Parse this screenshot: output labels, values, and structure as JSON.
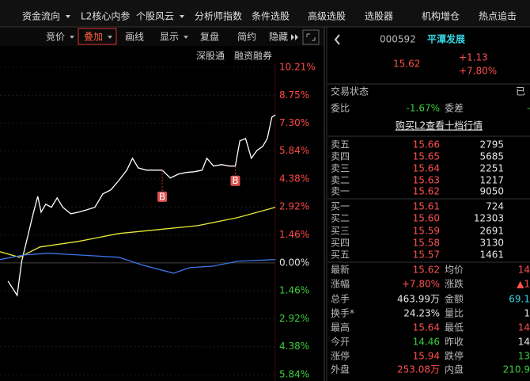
{
  "menu": [
    "资金流向",
    "L2核心内参",
    "个股风云",
    "分析师指数",
    "条件选股",
    "高级选股",
    "选股器",
    "机构增仓",
    "热点追击"
  ],
  "toolbar": [
    "竞价",
    "叠加",
    "画线",
    "显示",
    "复盘",
    "简约",
    "隐藏"
  ],
  "links": [
    "深股通",
    "融资融券"
  ],
  "chart_data": {
    "type": "line",
    "xlim": [
      0,
      241
    ],
    "ylim": [
      -5.84,
      10.21
    ],
    "yticks": [
      {
        "value": 10.21,
        "label": "10.21%"
      },
      {
        "value": 8.75,
        "label": "8.75%"
      },
      {
        "value": 7.3,
        "label": "7.30%"
      },
      {
        "value": 5.84,
        "label": "5.84%"
      },
      {
        "value": 4.38,
        "label": "4.38%"
      },
      {
        "value": 2.92,
        "label": "2.92%"
      },
      {
        "value": 1.46,
        "label": "1.46%"
      },
      {
        "value": 0,
        "label": "0.00%"
      },
      {
        "value": -1.46,
        "label": "1.46%"
      },
      {
        "value": -2.92,
        "label": "2.92%"
      },
      {
        "value": -4.38,
        "label": "4.38%"
      },
      {
        "value": -5.84,
        "label": "5.84%"
      }
    ],
    "series": [
      {
        "color": "#ffffff",
        "x": [
          7,
          15,
          19,
          24,
          29,
          33,
          36,
          40,
          45,
          50,
          55,
          62,
          69,
          76,
          83,
          90,
          97,
          104,
          111,
          116,
          121,
          128,
          135,
          142,
          149,
          156,
          163,
          170,
          177,
          181,
          187,
          194,
          201,
          206,
          210,
          215,
          220,
          225,
          230,
          234,
          238,
          241
        ],
        "values": [
          -0.95,
          -1.7,
          0.08,
          1.32,
          2.56,
          3.47,
          2.65,
          3.06,
          2.9,
          3.39,
          2.9,
          2.56,
          2.65,
          2.77,
          2.9,
          3.6,
          3.81,
          4.3,
          4.84,
          5.46,
          4.96,
          4.84,
          4.84,
          4.84,
          4.43,
          4.63,
          4.72,
          4.76,
          4.84,
          5.46,
          5.05,
          5.13,
          5.05,
          5.05,
          6.37,
          6.49,
          5.46,
          5.87,
          6.08,
          6.49,
          7.61,
          7.73
        ]
      },
      {
        "color": "#e8e83a",
        "x": [
          0,
          17,
          35,
          69,
          104,
          139,
          173,
          208,
          241
        ],
        "values": [
          0.58,
          0.29,
          0.83,
          1.12,
          1.53,
          1.74,
          1.94,
          2.36,
          2.9
        ]
      },
      {
        "color": "#3a78e8",
        "x": [
          0,
          21,
          42,
          69,
          104,
          125,
          152,
          166,
          187,
          208,
          241
        ],
        "values": [
          0.17,
          0.41,
          0.5,
          0.41,
          0.29,
          -0.12,
          -0.54,
          -0.25,
          -0.17,
          0.08,
          0.17
        ]
      }
    ],
    "markers": [
      {
        "label": "B",
        "x": 142,
        "value": 4.84
      },
      {
        "label": "B",
        "x": 206,
        "value": 5.05
      }
    ]
  },
  "quote": {
    "code": "000592",
    "name": "平潭发展",
    "price": "15.62",
    "change": "+1.13",
    "pct": "+7.80%"
  },
  "status": [
    "交易状态",
    "已"
  ],
  "weibi": [
    "委比",
    "-1.67%",
    "委差",
    "-"
  ],
  "l2_link": "购买L2查看十档行情",
  "sell": [
    [
      "卖五",
      "15.66",
      "2795"
    ],
    [
      "卖四",
      "15.65",
      "5685"
    ],
    [
      "卖三",
      "15.64",
      "2251"
    ],
    [
      "卖二",
      "15.63",
      "1217"
    ],
    [
      "卖一",
      "15.62",
      "9050"
    ]
  ],
  "buy": [
    [
      "买一",
      "15.61",
      "724"
    ],
    [
      "买二",
      "15.60",
      "12303"
    ],
    [
      "买三",
      "15.59",
      "2691"
    ],
    [
      "买四",
      "15.58",
      "3130"
    ],
    [
      "买五",
      "15.57",
      "1461"
    ]
  ],
  "stats": [
    [
      "最新",
      "15.62",
      "均价",
      "14"
    ],
    [
      "涨幅",
      "+7.80%",
      "涨跌",
      "▲1"
    ],
    [
      "总手",
      "463.99万",
      "金额",
      "69.1"
    ],
    [
      "换手*",
      "24.23%",
      "量比",
      "1"
    ],
    [
      "最高",
      "15.64",
      "最低",
      "14"
    ],
    [
      "今开",
      "14.46",
      "昨收",
      "14"
    ],
    [
      "涨停",
      "15.94",
      "跌停",
      "13"
    ],
    [
      "外盘",
      "253.08万",
      "内盘",
      "210.9"
    ]
  ]
}
